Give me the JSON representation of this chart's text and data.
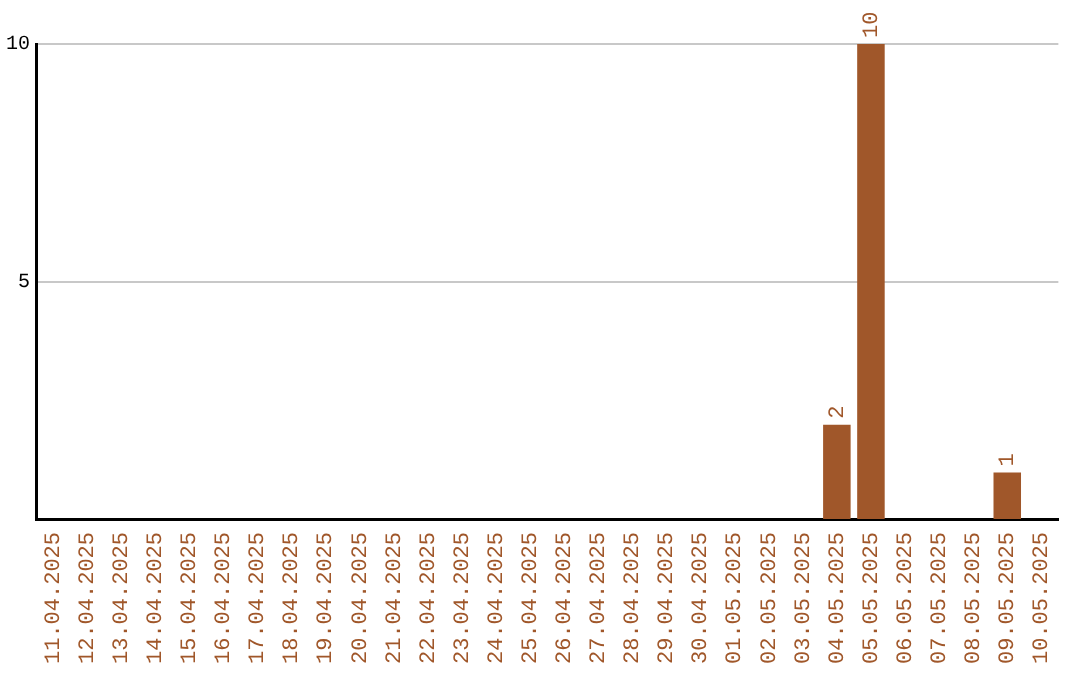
{
  "chart_data": {
    "type": "bar",
    "categories": [
      "11.04.2025",
      "12.04.2025",
      "13.04.2025",
      "14.04.2025",
      "15.04.2025",
      "16.04.2025",
      "17.04.2025",
      "18.04.2025",
      "19.04.2025",
      "20.04.2025",
      "21.04.2025",
      "22.04.2025",
      "23.04.2025",
      "24.04.2025",
      "25.04.2025",
      "26.04.2025",
      "27.04.2025",
      "28.04.2025",
      "29.04.2025",
      "30.04.2025",
      "01.05.2025",
      "02.05.2025",
      "03.05.2025",
      "04.05.2025",
      "05.05.2025",
      "06.05.2025",
      "07.05.2025",
      "08.05.2025",
      "09.05.2025",
      "10.05.2025"
    ],
    "values": [
      0,
      0,
      0,
      0,
      0,
      0,
      0,
      0,
      0,
      0,
      0,
      0,
      0,
      0,
      0,
      0,
      0,
      0,
      0,
      0,
      0,
      0,
      0,
      2,
      10,
      0,
      0,
      0,
      1,
      0
    ],
    "value_labels": [
      null,
      null,
      null,
      null,
      null,
      null,
      null,
      null,
      null,
      null,
      null,
      null,
      null,
      null,
      null,
      null,
      null,
      null,
      null,
      null,
      null,
      null,
      null,
      "2",
      "10",
      null,
      null,
      null,
      "1",
      null
    ],
    "color": "#a0572a",
    "ylim": [
      0,
      10
    ],
    "yticks": [
      {
        "value": 0,
        "label": null
      },
      5,
      10
    ],
    "grid": "y",
    "legend": false
  }
}
